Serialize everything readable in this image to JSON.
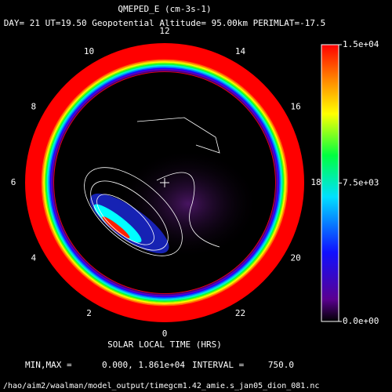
{
  "chart_data": {
    "type": "polar-contour",
    "title": "QMEPED_E (cm-3s-1)",
    "subtitle": "DAY= 21 UT=19.50 Geopotential Altitude= 95.00km PERIMLAT=-17.5",
    "hours": [
      12,
      14,
      16,
      18,
      20,
      22,
      0,
      2,
      4,
      6,
      8,
      10
    ],
    "xlabel": "SOLAR LOCAL TIME (HRS)",
    "zlim": [
      0,
      15000
    ],
    "zticks": [
      {
        "value": 15000,
        "label": "1.5e+04"
      },
      {
        "value": 7500,
        "label": "7.5e+03"
      },
      {
        "value": 0,
        "label": "0.0e+00"
      }
    ],
    "stats": {
      "minmax_label": "MIN,MAX =",
      "minmax": "0.000, 1.861e+04",
      "interval_label": "INTERVAL =",
      "interval": "750.0"
    },
    "file": "/hao/aim2/waalman/model_output/timegcm1.42_amie.s_jan05_dion_081.nc"
  }
}
